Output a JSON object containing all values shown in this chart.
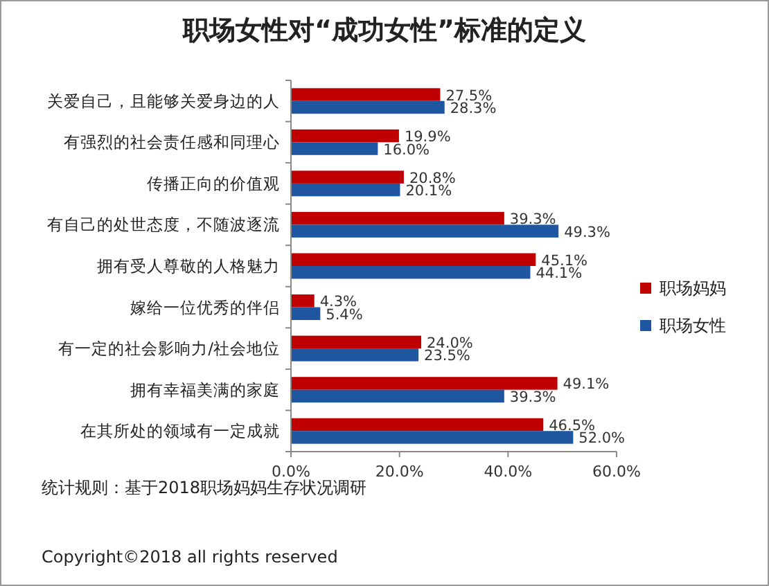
{
  "chart_data": {
    "type": "bar",
    "orientation": "horizontal",
    "title": "职场女性对“成功女性”标准的定义",
    "categories": [
      "关爱自己，且能够关爱身边的人",
      "有强烈的社会责任感和同理心",
      "传播正向的价值观",
      "有自己的处世态度，不随波逐流",
      "拥有受人尊敬的人格魅力",
      "嫁给一位优秀的伴侣",
      "有一定的社会影响力/社会地位",
      "拥有幸福美满的家庭",
      "在其所处的领域有一定成就"
    ],
    "series": [
      {
        "name": "职场妈妈",
        "color": "#c00000",
        "values": [
          27.5,
          19.9,
          20.8,
          39.3,
          45.1,
          4.3,
          24.0,
          49.1,
          46.5
        ],
        "value_labels": [
          "27.5%",
          "19.9%",
          "20.8%",
          "39.3%",
          "45.1%",
          "4.3%",
          "24.0%",
          "49.1%",
          "46.5%"
        ]
      },
      {
        "name": "职场女性",
        "color": "#1f56a0",
        "values": [
          28.3,
          16.0,
          20.1,
          49.3,
          44.1,
          5.4,
          23.5,
          39.3,
          52.0
        ],
        "value_labels": [
          "28.3%",
          "16.0%",
          "20.1%",
          "49.3%",
          "44.1%",
          "5.4%",
          "23.5%",
          "39.3%",
          "52.0%"
        ]
      }
    ],
    "xlim": [
      0,
      60
    ],
    "xticks": [
      {
        "value": 0,
        "label": "0.0%"
      },
      {
        "value": 20,
        "label": "20.0%"
      },
      {
        "value": 40,
        "label": "40.0%"
      },
      {
        "value": 60,
        "label": "60.0%"
      }
    ],
    "legend": "right",
    "annotations": [
      "统计规则：基于2018职场妈妈生存状况调研",
      "Copyright©2018 all rights reserved"
    ]
  }
}
